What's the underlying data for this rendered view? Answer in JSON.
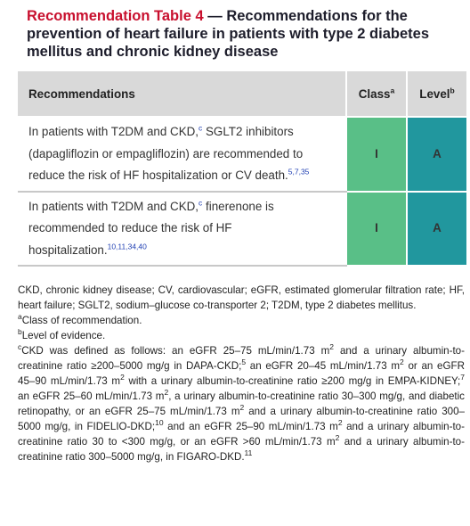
{
  "title": {
    "label": "Recommendation Table 4",
    "text": "— Recommendations for the prevention of heart failure in patients with type 2 diabetes mellitus and chronic kidney disease"
  },
  "table": {
    "header": [
      [
        {
          "text": "Recommendations"
        }
      ],
      [
        {
          "text": "Class"
        },
        {
          "sup": "a"
        }
      ],
      [
        {
          "text": "Level"
        },
        {
          "sup": "b"
        }
      ]
    ],
    "rows": [
      {
        "recommendation": [
          {
            "text": "In patients with T2DM and CKD,"
          },
          {
            "sup": "c"
          },
          {
            "text": " SGLT2 inhibitors (dapagliflozin or empagliflozin) are recommended to reduce the risk of HF hospitalization or CV death."
          },
          {
            "sup": "5,7,35"
          }
        ],
        "class": "I",
        "level": "A"
      },
      {
        "recommendation": [
          {
            "text": "In patients with T2DM and CKD,"
          },
          {
            "sup": "c"
          },
          {
            "text": " finerenone is recommended to reduce the risk of HF hospitalization."
          },
          {
            "sup": "10,11,34,40"
          }
        ],
        "class": "I",
        "level": "A"
      }
    ]
  },
  "footnotes": [
    [
      {
        "text": "CKD, chronic kidney disease; CV, cardiovascular; eGFR, estimated glomerular filtration rate; HF, heart failure; SGLT2, sodium–glucose co-transporter 2; T2DM, type 2 diabetes mellitus."
      }
    ],
    [
      {
        "sup": "a"
      },
      {
        "text": "Class of recommendation."
      }
    ],
    [
      {
        "sup": "b"
      },
      {
        "text": "Level of evidence."
      }
    ],
    [
      {
        "sup": "c"
      },
      {
        "text": "CKD was defined as follows: an eGFR 25–75 mL/min/1.73 m"
      },
      {
        "sup": "2"
      },
      {
        "text": " and a urinary albumin-to-creatinine ratio ≥200–5000 mg/g in DAPA-CKD;"
      },
      {
        "sup": "5"
      },
      {
        "text": " an eGFR 20–45 mL/min/1.73 m"
      },
      {
        "sup": "2"
      },
      {
        "text": " or an eGFR 45–90 mL/min/1.73 m"
      },
      {
        "sup": "2"
      },
      {
        "text": " with a urinary albumin-to-creatinine ratio ≥200 mg/g in EMPA-KIDNEY;"
      },
      {
        "sup": "7"
      },
      {
        "text": " an eGFR 25–60 mL/min/1.73 m"
      },
      {
        "sup": "2"
      },
      {
        "text": ", a urinary albumin-to-creatinine ratio 30–300 mg/g, and diabetic retinopathy, or an eGFR 25–75 mL/min/1.73 m"
      },
      {
        "sup": "2"
      },
      {
        "text": " and a urinary albumin-to-creatinine ratio 300–5000 mg/g, in FIDELIO-DKD;"
      },
      {
        "sup": "10"
      },
      {
        "text": " and an eGFR 25–90 mL/min/1.73 m"
      },
      {
        "sup": "2"
      },
      {
        "text": " and a urinary albumin-to-creatinine ratio 30 to <300 mg/g, or an eGFR >60 mL/min/1.73 m"
      },
      {
        "sup": "2"
      },
      {
        "text": " and a urinary albumin-to-creatinine ratio 300–5000 mg/g, in FIGARO-DKD."
      },
      {
        "sup": "11"
      }
    ]
  ]
}
